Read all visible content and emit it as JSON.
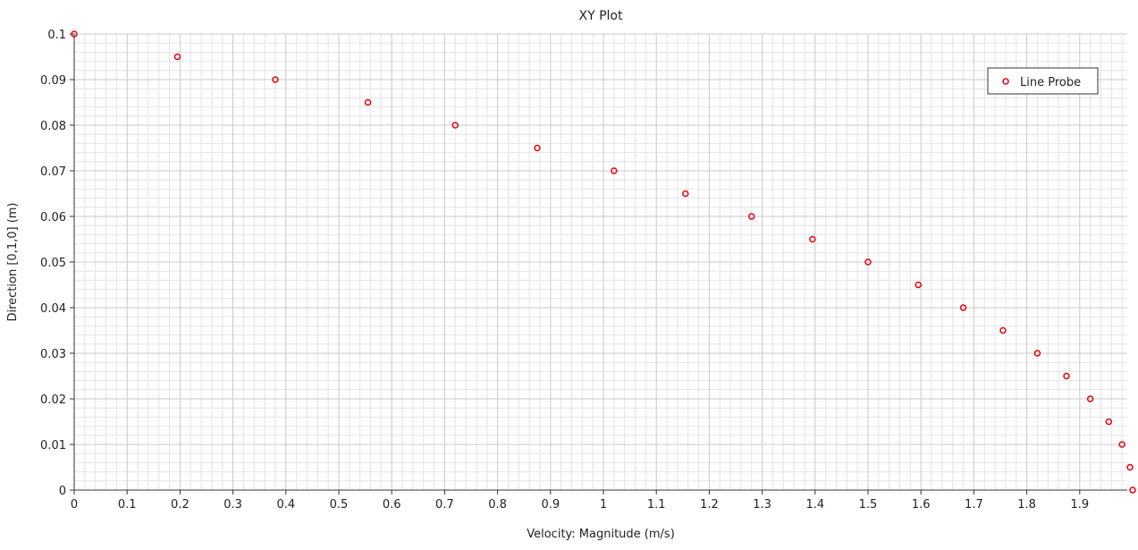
{
  "chart_data": {
    "type": "scatter",
    "title": "XY Plot",
    "xlabel": "Velocity: Magnitude (m/s)",
    "ylabel": "Direction [0,1,0] (m)",
    "xlim": [
      0,
      2.0
    ],
    "ylim": [
      0,
      0.1
    ],
    "x_ticks": [
      0,
      0.1,
      0.2,
      0.3,
      0.4,
      0.5,
      0.6,
      0.7,
      0.8,
      0.9,
      1,
      1.1,
      1.2,
      1.3,
      1.4,
      1.5,
      1.6,
      1.7,
      1.8,
      1.9
    ],
    "x_tick_labels": [
      "0",
      "0.1",
      "0.2",
      "0.3",
      "0.4",
      "0.5",
      "0.6",
      "0.7",
      "0.8",
      "0.9",
      "1",
      "1.1",
      "1.2",
      "1.3",
      "1.4",
      "1.5",
      "1.6",
      "1.7",
      "1.8",
      "1.9"
    ],
    "y_ticks": [
      0,
      0.01,
      0.02,
      0.03,
      0.04,
      0.05,
      0.06,
      0.07,
      0.08,
      0.09,
      0.1
    ],
    "y_tick_labels": [
      "0",
      "0.01",
      "0.02",
      "0.03",
      "0.04",
      "0.05",
      "0.06",
      "0.07",
      "0.08",
      "0.09",
      "0.1"
    ],
    "grid": true,
    "legend_position": "top-right",
    "series": [
      {
        "name": "Line Probe",
        "marker": "open-circle",
        "color": "#e8000b",
        "points": [
          {
            "x": 0.0,
            "y": 0.1
          },
          {
            "x": 0.195,
            "y": 0.095
          },
          {
            "x": 0.38,
            "y": 0.09
          },
          {
            "x": 0.555,
            "y": 0.085
          },
          {
            "x": 0.72,
            "y": 0.08
          },
          {
            "x": 0.875,
            "y": 0.075
          },
          {
            "x": 1.02,
            "y": 0.07
          },
          {
            "x": 1.155,
            "y": 0.065
          },
          {
            "x": 1.28,
            "y": 0.06
          },
          {
            "x": 1.395,
            "y": 0.055
          },
          {
            "x": 1.5,
            "y": 0.05
          },
          {
            "x": 1.595,
            "y": 0.045
          },
          {
            "x": 1.68,
            "y": 0.04
          },
          {
            "x": 1.755,
            "y": 0.035
          },
          {
            "x": 1.82,
            "y": 0.03
          },
          {
            "x": 1.875,
            "y": 0.025
          },
          {
            "x": 1.92,
            "y": 0.02
          },
          {
            "x": 1.955,
            "y": 0.015
          },
          {
            "x": 1.98,
            "y": 0.01
          },
          {
            "x": 1.995,
            "y": 0.005
          },
          {
            "x": 2.0,
            "y": 0.0
          }
        ]
      }
    ]
  }
}
